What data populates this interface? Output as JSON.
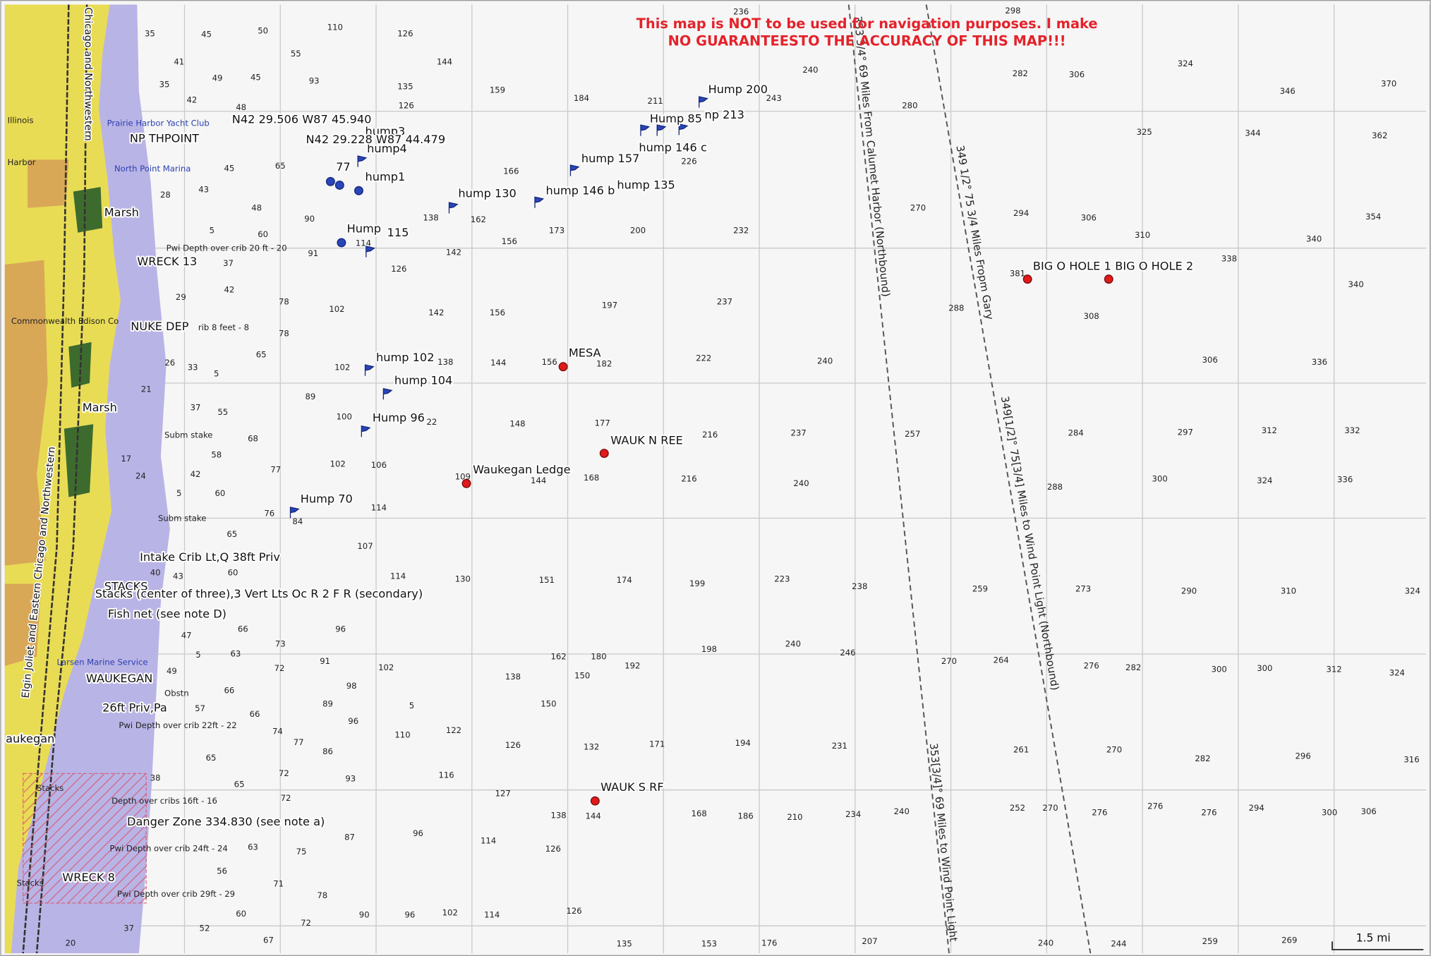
{
  "warning": [
    "This map is NOT to be used for navigation purposes. I make",
    "NO GUARANTEESTO THE ACCURACY OF THIS MAP!!!"
  ],
  "waypoints": [
    "Hump 200",
    "np 213",
    "Hump 85",
    "hump 146 c",
    "hump 157",
    "hump 135",
    "hump 146 b",
    "hump 130",
    "hump1",
    "77",
    "hump4",
    "hump3",
    "N42 29.506 W87 45.940",
    "N42 29.228 W87 44.479",
    "Hump",
    "115",
    "hump 102",
    "hump 104",
    "Hump 96",
    "Hump 70",
    "MESA",
    "WAUK N REE",
    "Waukegan Ledge",
    "WAUK S RF",
    "BIG O HOLE 1",
    "BIG O HOLE 2"
  ],
  "features": [
    "NP THPOINT",
    "Marsh",
    "WRECK 13",
    "NUKE DEP",
    "Marsh",
    "Intake Crib Lt,Q 38ft Priv",
    "STACKS",
    "Stacks (center of three),3 Vert Lts Oc R 2 F R (secondary)",
    "Fish net (see note D)",
    "WAUKEGAN",
    "26ft Priv,Pa",
    "Danger Zone 334.830 (see note a)",
    "WRECK 8",
    "Illinois",
    "Harbor",
    "aukegan",
    "Prairie Harbor Yacht Club",
    "North Point Marina",
    "Commonwealth Edison Co",
    "Pwi Depth over crib 20 ft - 20",
    "rib 8 feet - 8",
    "Subm stake",
    "Subm stake",
    "Larsen Marine Service",
    "Obstn",
    "Pwi Depth over crib 22ft - 22",
    "Depth over cribs 16ft - 16",
    "Pwi Depth over crib 24ft - 24",
    "Pwi Depth over crib 29ft - 29",
    "Stacks",
    "Stacks",
    "Chicago and Northwestern",
    "Elgin Joliet and Eastern Chicago and Northwestern"
  ],
  "routes": [
    "353 3/4° 69 Miles From Calumet Harbor (Northbound)",
    "349 1/2° 75 3/4 Miles Fropm Gary",
    "349[1/2]° 75[3/4] Miles to Wind Point Light (Northbound)",
    "353[3/4]° 69 Miles to Wind Point Light"
  ],
  "scale": "1.5 mi",
  "soundings": [
    236,
    298,
    110,
    126,
    50,
    45,
    35,
    55,
    144,
    41,
    240,
    282,
    306,
    324,
    346,
    370,
    35,
    49,
    45,
    93,
    135,
    159,
    184,
    211,
    243,
    280,
    126,
    42,
    48,
    325,
    344,
    362,
    226,
    45,
    65,
    166,
    28,
    43,
    48,
    90,
    138,
    162,
    270,
    294,
    306,
    354,
    5,
    60,
    173,
    200,
    232,
    156,
    142,
    91,
    114,
    126,
    310,
    340,
    338,
    37,
    381,
    340,
    29,
    42,
    78,
    102,
    142,
    156,
    197,
    237,
    288,
    308,
    26,
    33,
    5,
    65,
    78,
    102,
    138,
    144,
    156,
    182,
    222,
    240,
    306,
    336,
    21,
    89,
    37,
    55,
    100,
    22,
    148,
    177,
    216,
    237,
    257,
    284,
    297,
    312,
    332,
    68,
    58,
    17,
    42,
    24,
    102,
    106,
    77,
    109,
    144,
    168,
    216,
    240,
    300,
    324,
    336,
    288,
    5,
    60,
    76,
    84,
    114,
    65,
    107,
    40,
    43,
    60,
    114,
    130,
    151,
    174,
    199,
    223,
    238,
    259,
    273,
    290,
    310,
    324,
    47,
    66,
    96,
    73,
    5,
    63,
    198,
    240,
    246,
    270,
    264,
    276,
    282,
    300,
    300,
    312,
    324,
    49,
    72,
    91,
    102,
    162,
    180,
    192,
    138,
    150,
    98,
    66,
    57,
    89,
    5,
    150,
    66,
    96,
    74,
    110,
    122,
    77,
    86,
    126,
    132,
    171,
    194,
    231,
    261,
    270,
    282,
    296,
    316,
    65,
    72,
    93,
    116,
    65,
    72,
    127,
    38,
    240,
    252,
    270,
    276,
    276,
    276,
    294,
    300,
    306,
    138,
    144,
    168,
    186,
    210,
    234,
    87,
    96,
    114,
    126,
    63,
    75,
    56,
    71,
    78,
    60,
    90,
    96,
    102,
    114,
    126,
    72,
    52,
    37,
    67,
    135,
    153,
    176,
    207,
    240,
    244,
    259,
    269,
    20
  ]
}
